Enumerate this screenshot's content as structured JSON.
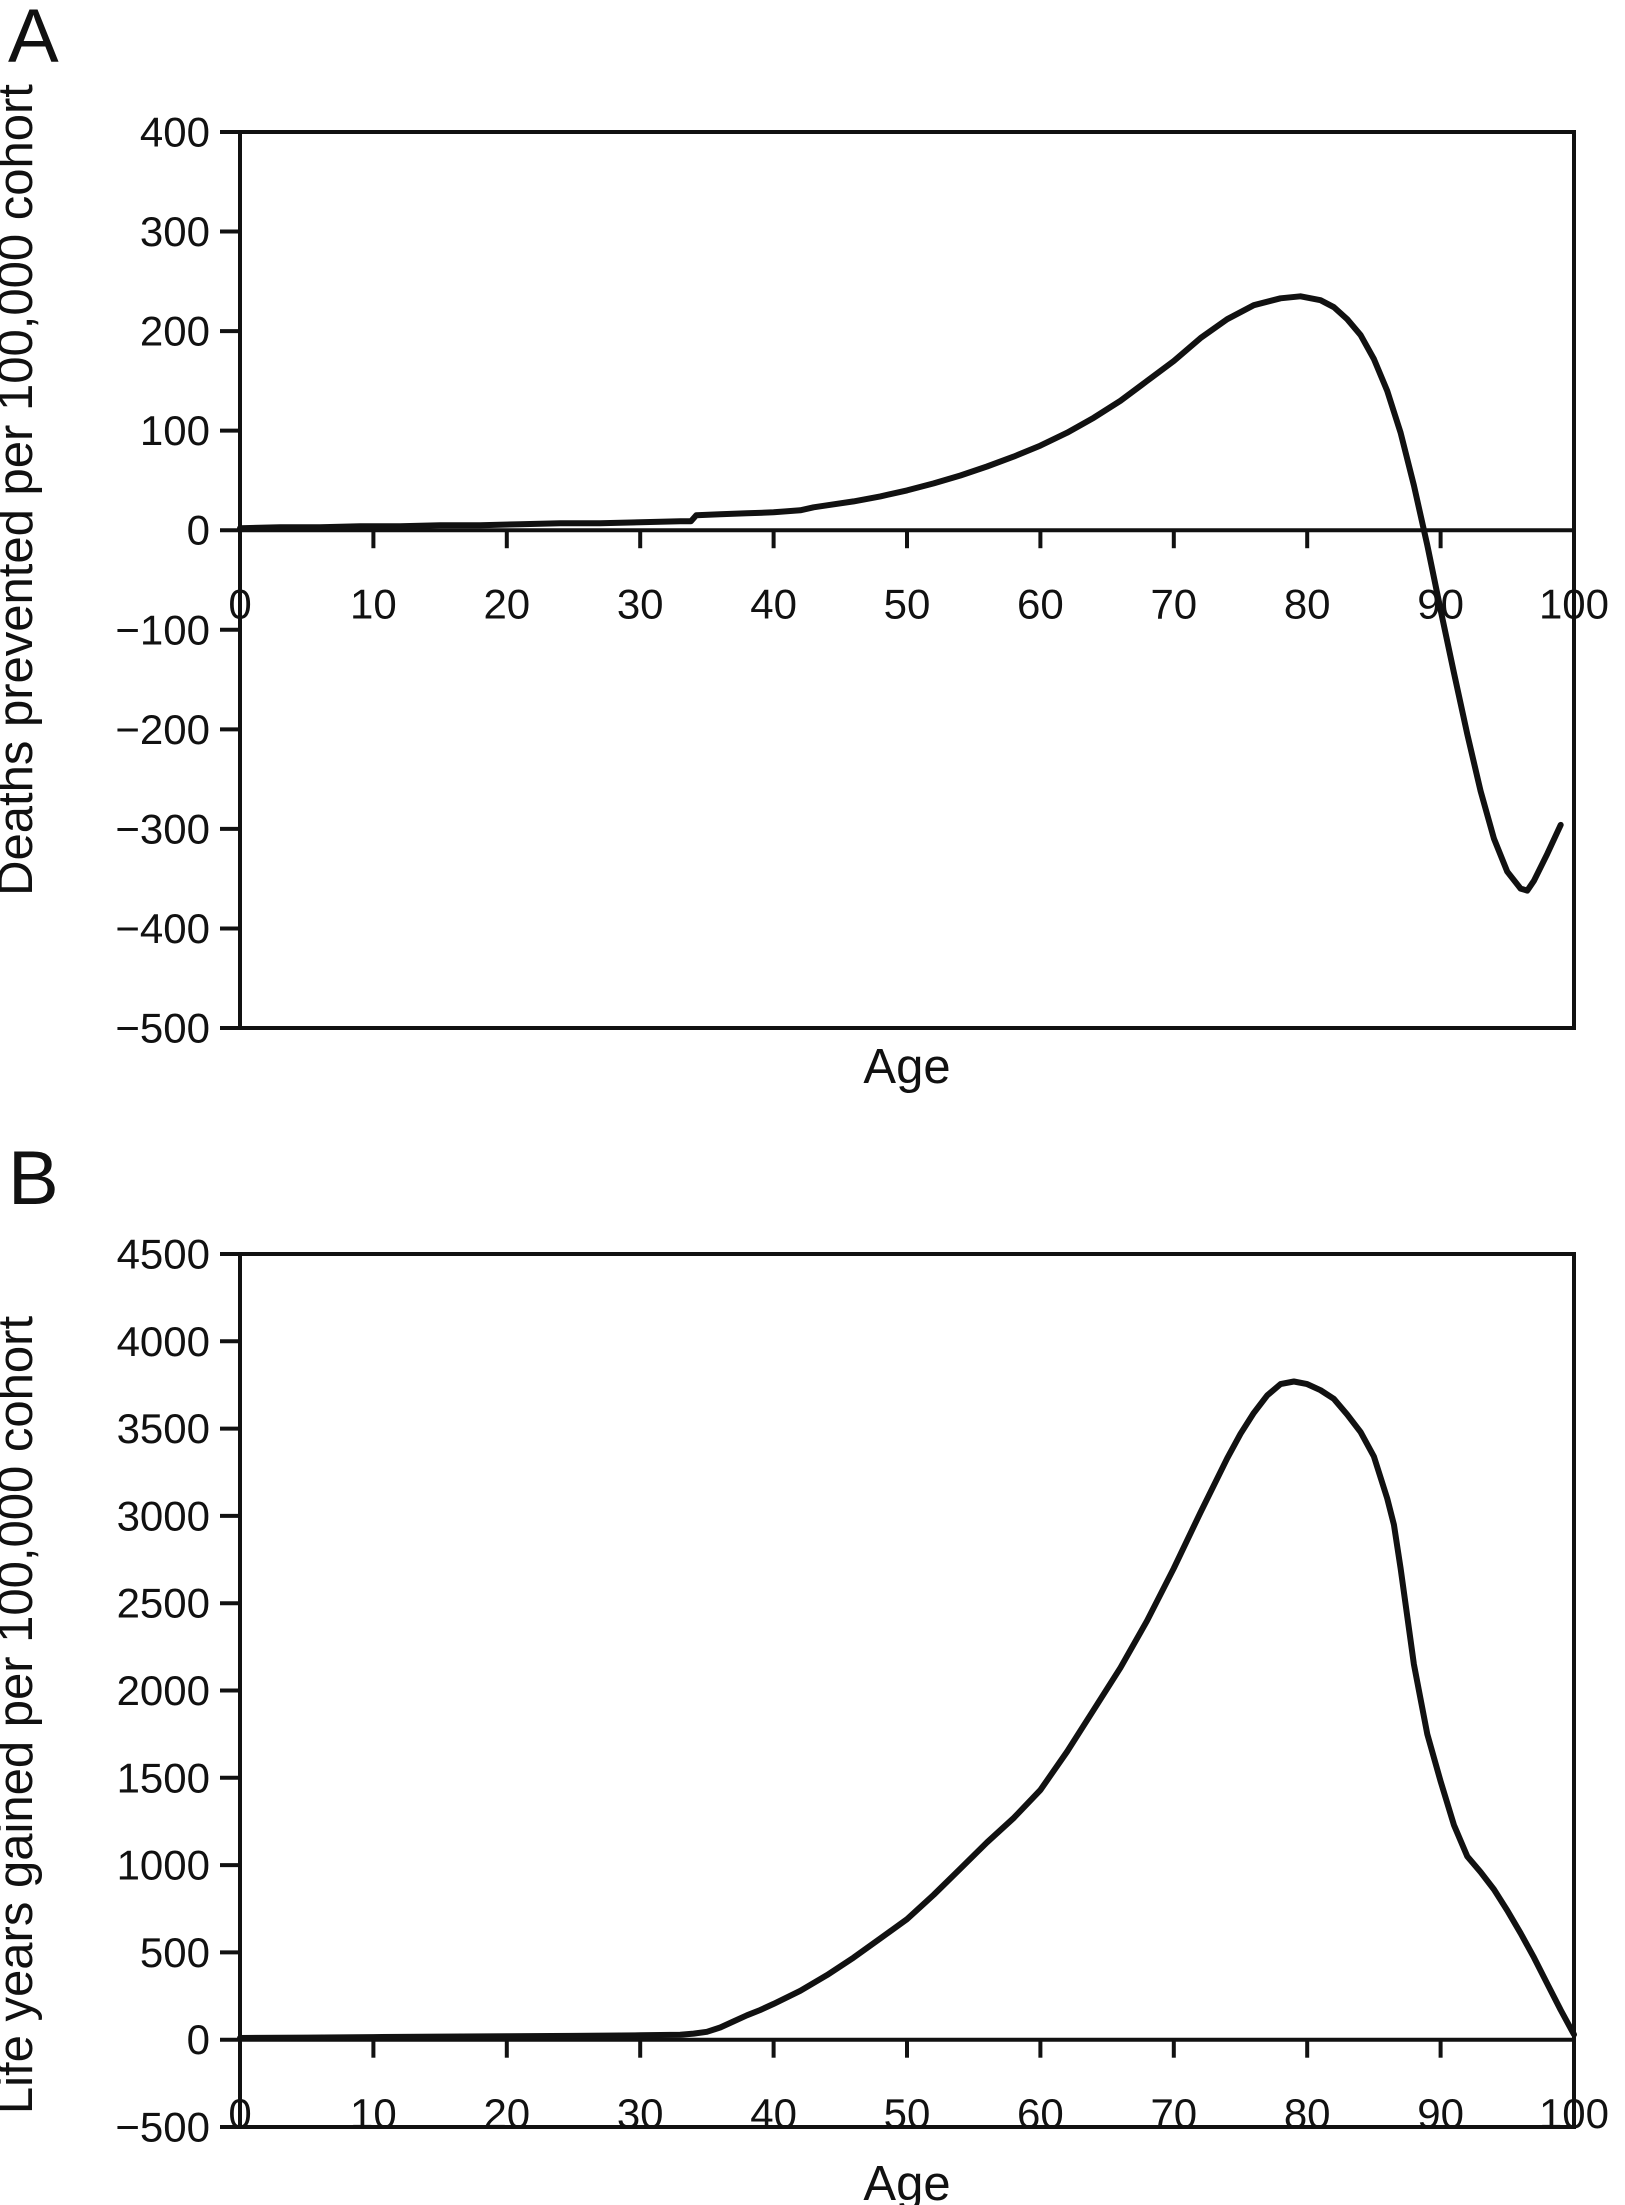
{
  "figure": {
    "background_color": "#ffffff",
    "line_color": "#111111",
    "axis_color": "#111111"
  },
  "chart_data": [
    {
      "type": "line",
      "panel_label": "A",
      "title": "",
      "xlabel": "Age",
      "ylabel": "Deaths prevented per 100,000 cohort",
      "xlim": [
        0,
        100
      ],
      "ylim": [
        -500,
        400
      ],
      "grid": false,
      "legend": "none",
      "xticks": [
        0,
        10,
        20,
        30,
        40,
        50,
        60,
        70,
        80,
        90,
        100
      ],
      "x_tick_labels": [
        "0",
        "10",
        "20",
        "30",
        "40",
        "50",
        "60",
        "70",
        "80",
        "90",
        "100"
      ],
      "yticks": [
        400,
        300,
        200,
        100,
        0,
        -100,
        -200,
        -300,
        -400,
        -500
      ],
      "y_tick_labels": [
        "400",
        "300",
        "200",
        "100",
        "0",
        "−100",
        "−200",
        "−300",
        "−400",
        "−500"
      ],
      "series": [
        {
          "name": "deaths-prevented-per-100000-cohort",
          "points": [
            [
              0,
              2
            ],
            [
              3,
              3
            ],
            [
              6,
              3
            ],
            [
              9,
              4
            ],
            [
              12,
              4
            ],
            [
              15,
              5
            ],
            [
              18,
              5
            ],
            [
              21,
              6
            ],
            [
              24,
              7
            ],
            [
              27,
              7
            ],
            [
              30,
              8
            ],
            [
              33,
              9
            ],
            [
              33.8,
              9
            ],
            [
              34.2,
              15
            ],
            [
              36,
              16
            ],
            [
              38,
              17
            ],
            [
              40,
              18
            ],
            [
              42,
              20
            ],
            [
              43,
              23
            ],
            [
              44,
              25
            ],
            [
              46,
              29
            ],
            [
              48,
              34
            ],
            [
              50,
              40
            ],
            [
              52,
              47
            ],
            [
              54,
              55
            ],
            [
              56,
              64
            ],
            [
              58,
              74
            ],
            [
              60,
              85
            ],
            [
              62,
              98
            ],
            [
              64,
              113
            ],
            [
              66,
              130
            ],
            [
              68,
              150
            ],
            [
              70,
              170
            ],
            [
              72,
              193
            ],
            [
              74,
              212
            ],
            [
              76,
              226
            ],
            [
              78,
              233
            ],
            [
              79.5,
              235
            ],
            [
              81,
              231
            ],
            [
              82,
              224
            ],
            [
              83,
              212
            ],
            [
              84,
              196
            ],
            [
              85,
              172
            ],
            [
              86,
              140
            ],
            [
              87,
              98
            ],
            [
              88,
              45
            ],
            [
              89,
              -15
            ],
            [
              90,
              -80
            ],
            [
              91,
              -143
            ],
            [
              92,
              -205
            ],
            [
              93,
              -262
            ],
            [
              94,
              -310
            ],
            [
              95,
              -343
            ],
            [
              96,
              -360
            ],
            [
              96.5,
              -362
            ],
            [
              97,
              -352
            ],
            [
              98,
              -325
            ],
            [
              99,
              -296
            ]
          ]
        }
      ]
    },
    {
      "type": "line",
      "panel_label": "B",
      "title": "",
      "xlabel": "Age",
      "ylabel": "Life years gained per 100,000 cohort",
      "xlim": [
        0,
        100
      ],
      "ylim": [
        -500,
        4500
      ],
      "grid": false,
      "legend": "none",
      "xticks": [
        0,
        10,
        20,
        30,
        40,
        50,
        60,
        70,
        80,
        90,
        100
      ],
      "x_tick_labels": [
        "0",
        "10",
        "20",
        "30",
        "40",
        "50",
        "60",
        "70",
        "80",
        "90",
        "100"
      ],
      "yticks": [
        4500,
        4000,
        3500,
        3000,
        2500,
        2000,
        1500,
        1000,
        500,
        0,
        -500
      ],
      "y_tick_labels": [
        "4500",
        "4000",
        "3500",
        "3000",
        "2500",
        "2000",
        "1500",
        "1000",
        "500",
        "0",
        "−500"
      ],
      "series": [
        {
          "name": "life-years-gained-per-100000-cohort",
          "points": [
            [
              0,
              10
            ],
            [
              5,
              12
            ],
            [
              10,
              15
            ],
            [
              15,
              18
            ],
            [
              20,
              20
            ],
            [
              25,
              22
            ],
            [
              30,
              25
            ],
            [
              33,
              28
            ],
            [
              34,
              35
            ],
            [
              35,
              45
            ],
            [
              36,
              70
            ],
            [
              37,
              105
            ],
            [
              38,
              140
            ],
            [
              39,
              170
            ],
            [
              40,
              205
            ],
            [
              42,
              280
            ],
            [
              44,
              370
            ],
            [
              46,
              470
            ],
            [
              48,
              580
            ],
            [
              50,
              690
            ],
            [
              52,
              830
            ],
            [
              54,
              980
            ],
            [
              56,
              1130
            ],
            [
              58,
              1270
            ],
            [
              60,
              1430
            ],
            [
              62,
              1650
            ],
            [
              64,
              1890
            ],
            [
              66,
              2130
            ],
            [
              68,
              2400
            ],
            [
              70,
              2700
            ],
            [
              72,
              3020
            ],
            [
              74,
              3330
            ],
            [
              75,
              3470
            ],
            [
              76,
              3590
            ],
            [
              77,
              3690
            ],
            [
              78,
              3755
            ],
            [
              79,
              3770
            ],
            [
              80,
              3755
            ],
            [
              81,
              3720
            ],
            [
              82,
              3670
            ],
            [
              83,
              3580
            ],
            [
              84,
              3480
            ],
            [
              85,
              3340
            ],
            [
              86,
              3100
            ],
            [
              86.5,
              2950
            ],
            [
              87,
              2700
            ],
            [
              88,
              2150
            ],
            [
              89,
              1750
            ],
            [
              90,
              1480
            ],
            [
              91,
              1230
            ],
            [
              92,
              1050
            ],
            [
              93,
              960
            ],
            [
              94,
              860
            ],
            [
              95,
              740
            ],
            [
              96,
              610
            ],
            [
              97,
              470
            ],
            [
              98,
              320
            ],
            [
              99,
              170
            ],
            [
              100,
              30
            ]
          ]
        }
      ]
    }
  ]
}
